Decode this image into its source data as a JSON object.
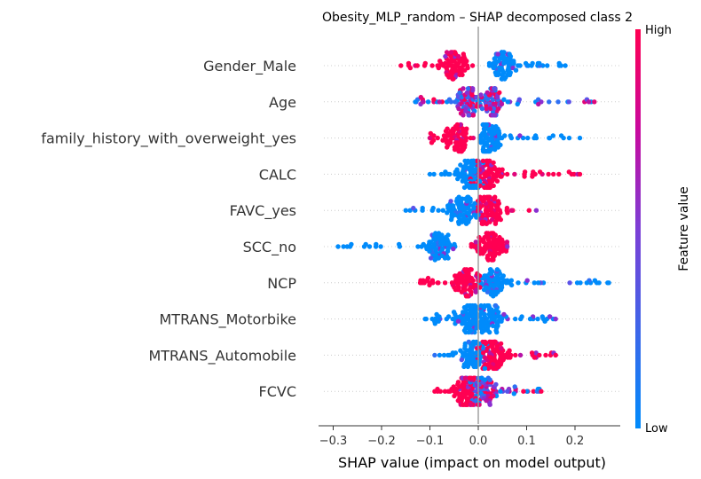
{
  "chart_data": {
    "type": "scatter",
    "subtype": "shap-beeswarm",
    "title": "Obesity_MLP_random – SHAP decomposed class 2",
    "xlabel": "SHAP value (impact on model output)",
    "xlim": [
      -0.33,
      0.29
    ],
    "x_ticks": [
      -0.3,
      -0.2,
      -0.1,
      0.0,
      0.1,
      0.2
    ],
    "x_tick_labels": [
      "−0.3",
      "−0.2",
      "−0.1",
      "0.0",
      "0.1",
      "0.2"
    ],
    "colorbar": {
      "label": "Feature value",
      "high_label": "High",
      "low_label": "Low",
      "high_color": "#ff0052",
      "low_color": "#008bfb"
    },
    "features": [
      {
        "name": "Gender_Male",
        "min": -0.16,
        "max": 0.18,
        "split": 0.0,
        "left_value": "high",
        "right_value": "low",
        "left_center": -0.05,
        "right_center": 0.05
      },
      {
        "name": "Age",
        "min": -0.13,
        "max": 0.24,
        "split": null,
        "left_value": "mixed",
        "right_value": "mixed",
        "left_center": -0.02,
        "right_center": 0.03
      },
      {
        "name": "family_history_with_overweight_yes",
        "min": -0.1,
        "max": 0.21,
        "split": 0.0,
        "left_value": "high",
        "right_value": "low",
        "left_center": -0.04,
        "right_center": 0.02
      },
      {
        "name": "CALC",
        "min": -0.1,
        "max": 0.21,
        "split": null,
        "left_value": "low",
        "right_value": "high",
        "left_center": -0.02,
        "right_center": 0.02
      },
      {
        "name": "FAVC_yes",
        "min": -0.15,
        "max": 0.12,
        "split": null,
        "left_value": "low",
        "right_value": "high",
        "left_center": -0.03,
        "right_center": 0.02
      },
      {
        "name": "SCC_no",
        "min": -0.29,
        "max": 0.06,
        "split": null,
        "left_value": "low",
        "right_value": "high",
        "left_center": -0.08,
        "right_center": 0.02
      },
      {
        "name": "NCP",
        "min": -0.12,
        "max": 0.27,
        "split": null,
        "left_value": "high",
        "right_value": "low",
        "left_center": -0.02,
        "right_center": 0.03
      },
      {
        "name": "MTRANS_Motorbike",
        "min": -0.11,
        "max": 0.16,
        "split": null,
        "left_value": "low",
        "right_value": "low",
        "left_center": -0.02,
        "right_center": 0.02
      },
      {
        "name": "MTRANS_Automobile",
        "min": -0.09,
        "max": 0.16,
        "split": null,
        "left_value": "low",
        "right_value": "high",
        "left_center": -0.01,
        "right_center": 0.03
      },
      {
        "name": "FCVC",
        "min": -0.09,
        "max": 0.13,
        "split": null,
        "left_value": "high",
        "right_value": "mixed",
        "left_center": -0.03,
        "right_center": 0.01
      }
    ]
  }
}
